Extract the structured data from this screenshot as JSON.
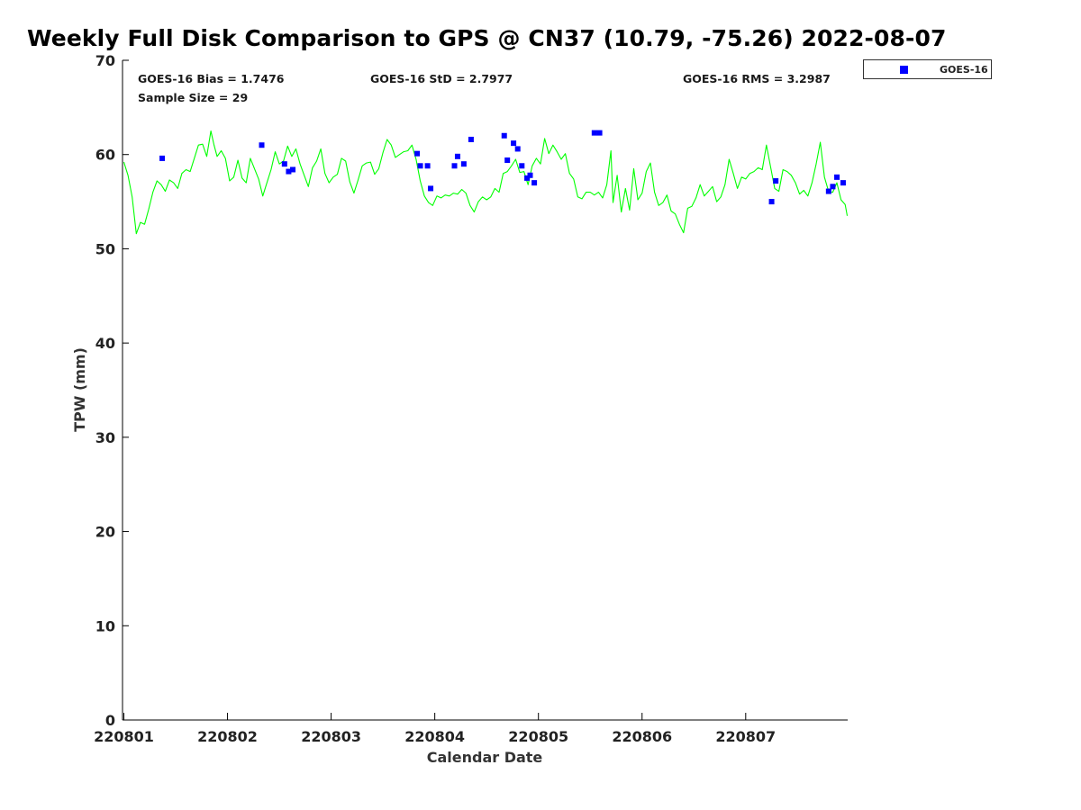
{
  "chart_data": {
    "type": "scatter",
    "title": "Weekly Full Disk Comparison to GPS @ CN37 (10.79, -75.26) 2022-08-07",
    "xlabel": "Calendar Date",
    "ylabel": "TPW (mm)",
    "xlim": [
      0,
      7
    ],
    "ylim": [
      0,
      70
    ],
    "x_ticks": [
      0,
      1,
      2,
      3,
      4,
      5,
      6
    ],
    "x_tick_labels": [
      "220801",
      "220802",
      "220803",
      "220804",
      "220805",
      "220806",
      "220807"
    ],
    "y_ticks": [
      0,
      10,
      20,
      30,
      40,
      50,
      60,
      70
    ],
    "y_tick_labels": [
      "0",
      "10",
      "20",
      "30",
      "40",
      "50",
      "60",
      "70"
    ],
    "x_unit": "days since 220801",
    "grid": false,
    "legend_position": "outside-top-right",
    "stats": {
      "bias": "GOES-16 Bias = 1.7476",
      "std": "GOES-16 StD = 2.7977",
      "rms": "GOES-16 RMS = 3.2987",
      "sample_size": "Sample Size = 29"
    },
    "series": [
      {
        "name": "GOES-16",
        "kind": "scatter",
        "marker": "square",
        "color": "#0000ff",
        "points": [
          [
            0.37,
            59.6
          ],
          [
            1.33,
            61.0
          ],
          [
            1.55,
            59.0
          ],
          [
            1.59,
            58.2
          ],
          [
            1.63,
            58.4
          ],
          [
            2.83,
            60.1
          ],
          [
            2.86,
            58.8
          ],
          [
            2.93,
            58.8
          ],
          [
            2.96,
            56.4
          ],
          [
            3.19,
            58.8
          ],
          [
            3.22,
            59.8
          ],
          [
            3.28,
            59.0
          ],
          [
            3.35,
            61.6
          ],
          [
            3.67,
            62.0
          ],
          [
            3.7,
            59.4
          ],
          [
            3.76,
            61.2
          ],
          [
            3.8,
            60.6
          ],
          [
            3.84,
            58.8
          ],
          [
            3.89,
            57.5
          ],
          [
            3.92,
            57.8
          ],
          [
            3.96,
            57.0
          ],
          [
            4.54,
            62.3
          ],
          [
            4.59,
            62.3
          ],
          [
            6.25,
            55.0
          ],
          [
            6.29,
            57.2
          ],
          [
            6.8,
            56.1
          ],
          [
            6.84,
            56.6
          ],
          [
            6.88,
            57.6
          ],
          [
            6.94,
            57.0
          ]
        ]
      },
      {
        "name": "GPS",
        "kind": "line",
        "color": "#00ff00",
        "points": [
          [
            0.0,
            59.2
          ],
          [
            0.04,
            57.8
          ],
          [
            0.08,
            55.5
          ],
          [
            0.12,
            51.6
          ],
          [
            0.16,
            52.8
          ],
          [
            0.2,
            52.6
          ],
          [
            0.24,
            54.2
          ],
          [
            0.28,
            56.0
          ],
          [
            0.32,
            57.2
          ],
          [
            0.36,
            56.8
          ],
          [
            0.4,
            56.1
          ],
          [
            0.44,
            57.3
          ],
          [
            0.48,
            57.0
          ],
          [
            0.52,
            56.4
          ],
          [
            0.56,
            58.0
          ],
          [
            0.6,
            58.4
          ],
          [
            0.64,
            58.2
          ],
          [
            0.68,
            59.6
          ],
          [
            0.72,
            61.0
          ],
          [
            0.76,
            61.1
          ],
          [
            0.8,
            59.8
          ],
          [
            0.84,
            62.5
          ],
          [
            0.87,
            61.0
          ],
          [
            0.9,
            59.8
          ],
          [
            0.94,
            60.4
          ],
          [
            0.98,
            59.6
          ],
          [
            1.02,
            57.2
          ],
          [
            1.06,
            57.6
          ],
          [
            1.1,
            59.4
          ],
          [
            1.14,
            57.5
          ],
          [
            1.18,
            57.0
          ],
          [
            1.22,
            59.6
          ],
          [
            1.26,
            58.5
          ],
          [
            1.3,
            57.4
          ],
          [
            1.34,
            55.6
          ],
          [
            1.38,
            57.0
          ],
          [
            1.42,
            58.4
          ],
          [
            1.46,
            60.3
          ],
          [
            1.5,
            59.0
          ],
          [
            1.54,
            59.3
          ],
          [
            1.58,
            60.9
          ],
          [
            1.62,
            59.8
          ],
          [
            1.66,
            60.6
          ],
          [
            1.7,
            59.0
          ],
          [
            1.74,
            57.8
          ],
          [
            1.78,
            56.6
          ],
          [
            1.82,
            58.6
          ],
          [
            1.86,
            59.3
          ],
          [
            1.9,
            60.6
          ],
          [
            1.94,
            58.0
          ],
          [
            1.98,
            57.0
          ],
          [
            2.02,
            57.6
          ],
          [
            2.06,
            57.9
          ],
          [
            2.1,
            59.6
          ],
          [
            2.14,
            59.3
          ],
          [
            2.18,
            57.1
          ],
          [
            2.22,
            55.9
          ],
          [
            2.26,
            57.3
          ],
          [
            2.3,
            58.8
          ],
          [
            2.34,
            59.1
          ],
          [
            2.38,
            59.2
          ],
          [
            2.42,
            57.9
          ],
          [
            2.46,
            58.5
          ],
          [
            2.5,
            60.2
          ],
          [
            2.54,
            61.6
          ],
          [
            2.58,
            61.0
          ],
          [
            2.62,
            59.7
          ],
          [
            2.66,
            60.0
          ],
          [
            2.7,
            60.3
          ],
          [
            2.74,
            60.4
          ],
          [
            2.78,
            61.0
          ],
          [
            2.82,
            59.5
          ],
          [
            2.86,
            57.2
          ],
          [
            2.9,
            55.6
          ],
          [
            2.94,
            54.9
          ],
          [
            2.98,
            54.6
          ],
          [
            3.02,
            55.6
          ],
          [
            3.06,
            55.4
          ],
          [
            3.1,
            55.7
          ],
          [
            3.14,
            55.6
          ],
          [
            3.18,
            55.9
          ],
          [
            3.22,
            55.8
          ],
          [
            3.26,
            56.3
          ],
          [
            3.3,
            55.9
          ],
          [
            3.34,
            54.6
          ],
          [
            3.38,
            53.9
          ],
          [
            3.42,
            55.0
          ],
          [
            3.46,
            55.5
          ],
          [
            3.5,
            55.2
          ],
          [
            3.54,
            55.5
          ],
          [
            3.58,
            56.4
          ],
          [
            3.62,
            56.0
          ],
          [
            3.66,
            58.0
          ],
          [
            3.7,
            58.2
          ],
          [
            3.74,
            58.8
          ],
          [
            3.78,
            59.5
          ],
          [
            3.82,
            58.1
          ],
          [
            3.86,
            58.2
          ],
          [
            3.9,
            56.8
          ],
          [
            3.94,
            58.8
          ],
          [
            3.98,
            59.6
          ],
          [
            4.02,
            59.0
          ],
          [
            4.06,
            61.7
          ],
          [
            4.1,
            60.1
          ],
          [
            4.14,
            61.0
          ],
          [
            4.18,
            60.3
          ],
          [
            4.22,
            59.5
          ],
          [
            4.26,
            60.1
          ],
          [
            4.3,
            58.0
          ],
          [
            4.34,
            57.4
          ],
          [
            4.38,
            55.5
          ],
          [
            4.42,
            55.3
          ],
          [
            4.46,
            56.0
          ],
          [
            4.5,
            56.0
          ],
          [
            4.54,
            55.7
          ],
          [
            4.58,
            56.0
          ],
          [
            4.62,
            55.4
          ],
          [
            4.66,
            56.8
          ],
          [
            4.7,
            60.4
          ],
          [
            4.72,
            54.9
          ],
          [
            4.76,
            57.8
          ],
          [
            4.8,
            53.9
          ],
          [
            4.84,
            56.4
          ],
          [
            4.88,
            54.1
          ],
          [
            4.92,
            58.5
          ],
          [
            4.96,
            55.2
          ],
          [
            5.0,
            55.9
          ],
          [
            5.04,
            58.2
          ],
          [
            5.08,
            59.1
          ],
          [
            5.12,
            56.0
          ],
          [
            5.16,
            54.6
          ],
          [
            5.2,
            54.9
          ],
          [
            5.24,
            55.7
          ],
          [
            5.28,
            54.0
          ],
          [
            5.32,
            53.7
          ],
          [
            5.36,
            52.6
          ],
          [
            5.4,
            51.7
          ],
          [
            5.44,
            54.3
          ],
          [
            5.48,
            54.5
          ],
          [
            5.52,
            55.4
          ],
          [
            5.56,
            56.8
          ],
          [
            5.6,
            55.6
          ],
          [
            5.64,
            56.1
          ],
          [
            5.68,
            56.6
          ],
          [
            5.72,
            55.0
          ],
          [
            5.76,
            55.5
          ],
          [
            5.8,
            56.8
          ],
          [
            5.84,
            59.5
          ],
          [
            5.88,
            58.0
          ],
          [
            5.92,
            56.4
          ],
          [
            5.96,
            57.6
          ],
          [
            6.0,
            57.4
          ],
          [
            6.04,
            58.0
          ],
          [
            6.08,
            58.2
          ],
          [
            6.12,
            58.6
          ],
          [
            6.16,
            58.4
          ],
          [
            6.2,
            61.0
          ],
          [
            6.24,
            58.7
          ],
          [
            6.28,
            56.4
          ],
          [
            6.32,
            56.1
          ],
          [
            6.36,
            58.4
          ],
          [
            6.4,
            58.2
          ],
          [
            6.44,
            57.8
          ],
          [
            6.48,
            57.0
          ],
          [
            6.52,
            55.8
          ],
          [
            6.56,
            56.2
          ],
          [
            6.6,
            55.6
          ],
          [
            6.64,
            57.0
          ],
          [
            6.68,
            59.0
          ],
          [
            6.72,
            61.3
          ],
          [
            6.76,
            57.6
          ],
          [
            6.8,
            56.1
          ],
          [
            6.84,
            56.0
          ],
          [
            6.88,
            57.0
          ],
          [
            6.92,
            55.2
          ],
          [
            6.96,
            54.7
          ],
          [
            6.98,
            53.5
          ]
        ]
      }
    ]
  }
}
